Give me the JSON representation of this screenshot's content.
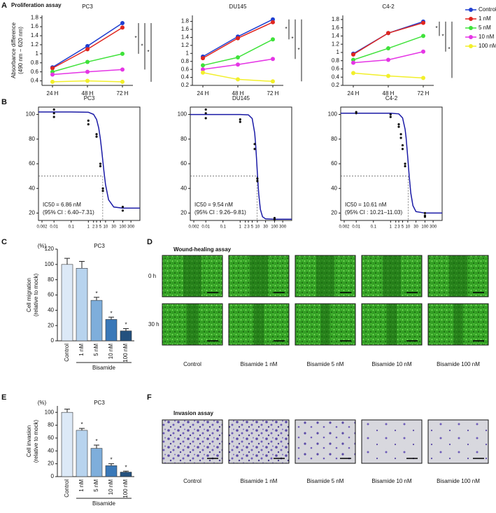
{
  "panel_labels": [
    "A",
    "B",
    "C",
    "D",
    "E",
    "F"
  ],
  "proliferation_title": "Proliferation assay",
  "wound_healing": {
    "title": "Wound-healing assay",
    "rows": [
      "0 h",
      "30 h"
    ],
    "captions": [
      "Control",
      "Bisamide 1 nM",
      "Bisamide 5 nM",
      "Bisamide 10 nM",
      "Bisamide 100 nM"
    ]
  },
  "invasion": {
    "title": "Invasion assay",
    "captions": [
      "Control",
      "Bisamide 1 nM",
      "Bisamide 5 nM",
      "Bisamide 10 nM",
      "Bisamide 100 nM"
    ]
  },
  "chart_data": [
    {
      "type": "line",
      "title": "PC3",
      "ylabel": [
        "Absorbance difference",
        "(490 nm − 620 nm)"
      ],
      "categories": [
        "24 H",
        "48 H",
        "72 H"
      ],
      "series": [
        {
          "name": "Control",
          "color": "#1f3fd0",
          "values": [
            0.7,
            1.17,
            1.68
          ]
        },
        {
          "name": "1 nM",
          "color": "#e0261f",
          "values": [
            0.68,
            1.1,
            1.58
          ]
        },
        {
          "name": "5 nM",
          "color": "#3fe23a",
          "values": [
            0.6,
            0.82,
            1.0
          ]
        },
        {
          "name": "10 nM",
          "color": "#e535e5",
          "values": [
            0.54,
            0.6,
            0.65
          ]
        },
        {
          "name": "100 nM",
          "color": "#f2ef2a",
          "values": [
            0.38,
            0.4,
            0.38
          ]
        }
      ],
      "ylim": [
        0.3,
        1.85
      ],
      "yticks": [
        0.4,
        0.6,
        0.8,
        1.0,
        1.2,
        1.4,
        1.6,
        1.8
      ],
      "significance_label": "*"
    },
    {
      "type": "line",
      "title": "DU145",
      "categories": [
        "24 H",
        "48 H",
        "72 H"
      ],
      "series": [
        {
          "name": "Control",
          "color": "#1f3fd0",
          "values": [
            0.92,
            1.42,
            1.85
          ]
        },
        {
          "name": "1 nM",
          "color": "#e0261f",
          "values": [
            0.88,
            1.38,
            1.78
          ]
        },
        {
          "name": "5 nM",
          "color": "#3fe23a",
          "values": [
            0.7,
            0.9,
            1.35
          ]
        },
        {
          "name": "10 nM",
          "color": "#e535e5",
          "values": [
            0.6,
            0.72,
            0.86
          ]
        },
        {
          "name": "100 nM",
          "color": "#f2ef2a",
          "values": [
            0.52,
            0.35,
            0.3
          ]
        }
      ],
      "ylim": [
        0.2,
        1.95
      ],
      "yticks": [
        0.2,
        0.4,
        0.6,
        0.8,
        1.0,
        1.2,
        1.4,
        1.6,
        1.8
      ],
      "significance_label": "*"
    },
    {
      "type": "line",
      "title": "C4-2",
      "categories": [
        "24 H",
        "48 H",
        "72 H"
      ],
      "series": [
        {
          "name": "Control",
          "color": "#1f3fd0",
          "values": [
            0.97,
            1.47,
            1.75
          ]
        },
        {
          "name": "1 nM",
          "color": "#e0261f",
          "values": [
            0.95,
            1.47,
            1.72
          ]
        },
        {
          "name": "5 nM",
          "color": "#3fe23a",
          "values": [
            0.82,
            1.1,
            1.4
          ]
        },
        {
          "name": "10 nM",
          "color": "#e535e5",
          "values": [
            0.75,
            0.82,
            1.02
          ]
        },
        {
          "name": "100 nM",
          "color": "#f2ef2a",
          "values": [
            0.5,
            0.43,
            0.38
          ]
        }
      ],
      "ylim": [
        0.2,
        1.9
      ],
      "yticks": [
        0.2,
        0.4,
        0.6,
        0.8,
        1.0,
        1.2,
        1.4,
        1.6,
        1.8
      ],
      "significance_label": "*"
    },
    {
      "type": "scatter",
      "title": "PC3",
      "xscale": "log",
      "color": "#1a1aa6",
      "x": [
        0.01,
        0.01,
        0.01,
        1,
        1,
        3,
        3,
        5,
        5,
        7,
        7,
        100,
        100
      ],
      "y": [
        104,
        101,
        98,
        95,
        92,
        84,
        82,
        60,
        58,
        40,
        38,
        25,
        22
      ],
      "fit": {
        "x": [
          0.00125,
          0.01,
          0.1,
          1,
          2,
          3,
          4,
          5,
          6,
          7,
          8,
          10,
          15,
          30,
          100,
          1000
        ],
        "y": [
          102,
          102,
          102,
          101.8,
          100.1,
          96,
          89.1,
          80.2,
          70.7,
          61.9,
          54.2,
          43,
          30.8,
          24.9,
          24,
          24
        ]
      },
      "ic50": 6.86,
      "reference_y": 50,
      "annotation": [
        "IC50 = 6.86 nM",
        "(95% CI : 6.40–7.31)"
      ],
      "xlim": [
        0.00125,
        1000
      ],
      "ylim": [
        14,
        106
      ],
      "xticks": [
        0.002,
        0.01,
        0.1,
        1,
        2,
        3,
        5,
        10,
        30,
        100,
        300
      ],
      "yticks": [
        20,
        40,
        60,
        80,
        100
      ]
    },
    {
      "type": "scatter",
      "title": "DU145",
      "xscale": "log",
      "color": "#1a1aa6",
      "x": [
        0.01,
        0.01,
        0.01,
        1,
        1,
        7,
        7,
        10,
        10,
        100,
        100
      ],
      "y": [
        104,
        101,
        97,
        96,
        94,
        76,
        72,
        48,
        46,
        16,
        15
      ],
      "fit": {
        "x": [
          0.00125,
          0.01,
          0.1,
          1,
          3,
          5,
          7,
          8,
          9,
          10,
          12,
          15,
          20,
          30,
          100,
          1000
        ],
        "y": [
          100,
          100,
          100,
          100,
          99.7,
          96.7,
          85,
          75,
          63.7,
          52.5,
          35.5,
          23,
          17,
          15.3,
          15,
          15
        ]
      },
      "ic50": 9.54,
      "reference_y": 50,
      "annotation": [
        "IC50 = 9.54 nM",
        "(95% CI : 9.26–9.81)"
      ],
      "xlim": [
        0.00125,
        1000
      ],
      "ylim": [
        14,
        106
      ],
      "xticks": [
        0.002,
        0.01,
        0.1,
        1,
        2,
        3,
        5,
        10,
        30,
        100,
        300
      ],
      "yticks": [
        20,
        40,
        60,
        80,
        100
      ]
    },
    {
      "type": "scatter",
      "title": "C4-2",
      "xscale": "log",
      "color": "#1a1aa6",
      "x": [
        0.01,
        0.01,
        1,
        1,
        3,
        3,
        4,
        4,
        5,
        5,
        7,
        7,
        100,
        100,
        100
      ],
      "y": [
        102,
        101,
        100,
        98,
        92,
        90,
        84,
        81,
        75,
        72,
        60,
        58,
        20,
        18,
        17
      ],
      "fit": {
        "x": [
          0.00125,
          0.01,
          0.1,
          1,
          3,
          5,
          7,
          8,
          10,
          12,
          15,
          20,
          30,
          100,
          1000
        ],
        "y": [
          101,
          101,
          101,
          101,
          100.5,
          97.2,
          88,
          81.2,
          65,
          50.7,
          36.2,
          26,
          21.2,
          20,
          20
        ]
      },
      "ic50": 10.61,
      "reference_y": 50,
      "annotation": [
        "IC50 = 10.61 nM",
        "(95% CI : 10.21–11.03)"
      ],
      "xlim": [
        0.00125,
        1000
      ],
      "ylim": [
        14,
        106
      ],
      "xticks": [
        0.002,
        0.01,
        0.1,
        1,
        2,
        3,
        5,
        10,
        30,
        100,
        300
      ],
      "yticks": [
        20,
        40,
        60,
        80,
        100
      ]
    },
    {
      "type": "bar",
      "title": "PC3",
      "unit": "(%)",
      "ylabel": [
        "Cell migration",
        "(relative to mock)"
      ],
      "group_label": "Bisamide",
      "categories": [
        "Control",
        "1 nM",
        "5 nM",
        "10 nM",
        "100 nM"
      ],
      "values": [
        100,
        95,
        53,
        28,
        13
      ],
      "errors": [
        8,
        9,
        4,
        3,
        3
      ],
      "colors": [
        "#dce9f7",
        "#b7d3ee",
        "#7eaedb",
        "#3a78b8",
        "#24517e"
      ],
      "significant": [
        false,
        false,
        true,
        true,
        true
      ],
      "significance_label": "*",
      "ylim": [
        0,
        120
      ],
      "yticks": [
        0,
        20,
        40,
        60,
        80,
        100,
        120
      ]
    },
    {
      "type": "bar",
      "title": "PC3",
      "unit": "(%)",
      "ylabel": [
        "Cell invasion",
        "(relative to mock)"
      ],
      "group_label": "Bisamide",
      "categories": [
        "Control",
        "1 nM",
        "5 nM",
        "10 nM",
        "100 nM"
      ],
      "values": [
        100,
        72,
        44,
        17,
        7
      ],
      "errors": [
        5,
        3,
        5,
        3,
        1.5
      ],
      "colors": [
        "#dce9f7",
        "#b7d3ee",
        "#7eaedb",
        "#3a78b8",
        "#24517e"
      ],
      "significant": [
        false,
        true,
        true,
        true,
        true
      ],
      "significance_label": "*",
      "ylim": [
        0,
        110
      ],
      "yticks": [
        0,
        20,
        40,
        60,
        80,
        100
      ]
    }
  ]
}
